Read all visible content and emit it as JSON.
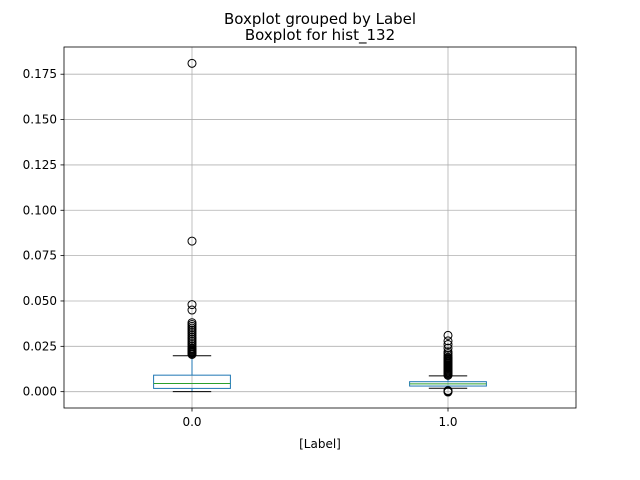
{
  "chart_data": {
    "type": "boxplot",
    "suptitle": "Boxplot grouped by Label",
    "title": "Boxplot for hist_132",
    "xlabel": "[Label]",
    "ylabel": "",
    "categories": [
      "0.0",
      "1.0"
    ],
    "ylim": [
      -0.009,
      0.19
    ],
    "yticks": [
      0.0,
      0.025,
      0.05,
      0.075,
      0.1,
      0.125,
      0.15,
      0.175
    ],
    "ytick_labels": [
      "0.000",
      "0.025",
      "0.050",
      "0.075",
      "0.100",
      "0.125",
      "0.150",
      "0.175"
    ],
    "grid": true,
    "colors": {
      "box": "#1f77b4",
      "median": "#2ca02c",
      "whisker": "#000000",
      "grid": "#b0b0b0"
    },
    "boxes": [
      {
        "category": "0.0",
        "whislo": 0.0,
        "q1": 0.0018,
        "median": 0.0045,
        "q3": 0.0091,
        "whishi": 0.0198,
        "fliers": [
          0.0205,
          0.021,
          0.0215,
          0.022,
          0.0225,
          0.023,
          0.0235,
          0.024,
          0.025,
          0.026,
          0.027,
          0.028,
          0.029,
          0.03,
          0.031,
          0.032,
          0.033,
          0.034,
          0.035,
          0.036,
          0.037,
          0.038,
          0.045,
          0.048,
          0.083,
          0.181
        ]
      },
      {
        "category": "1.0",
        "whislo": 0.0019,
        "q1": 0.0031,
        "median": 0.0043,
        "q3": 0.0055,
        "whishi": 0.0087,
        "fliers": [
          -0.0002,
          0.0002,
          0.0006,
          0.009,
          0.0095,
          0.01,
          0.0105,
          0.011,
          0.0115,
          0.012,
          0.0125,
          0.013,
          0.0135,
          0.014,
          0.0145,
          0.015,
          0.0155,
          0.016,
          0.0165,
          0.017,
          0.0175,
          0.018,
          0.0185,
          0.019,
          0.02,
          0.021,
          0.022,
          0.024,
          0.026,
          0.028,
          0.031
        ]
      }
    ]
  }
}
